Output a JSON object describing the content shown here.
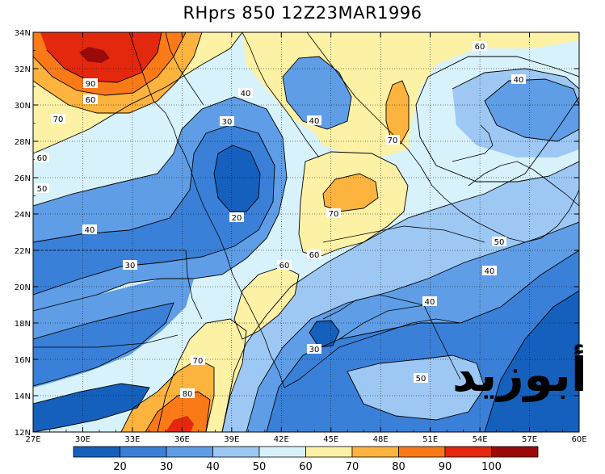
{
  "title": "RHprs 850 12Z23MAR1996",
  "watermark": "أبوزيد",
  "map": {
    "lat_labels": [
      "34N",
      "32N",
      "30N",
      "28N",
      "26N",
      "24N",
      "22N",
      "20N",
      "18N",
      "16N",
      "14N",
      "12N"
    ],
    "lon_labels": [
      "27E",
      "30E",
      "33E",
      "36E",
      "39E",
      "42E",
      "45E",
      "48E",
      "51E",
      "54E",
      "57E",
      "60E"
    ],
    "contour_labels": [
      {
        "text": "60"
      },
      {
        "text": "40"
      },
      {
        "text": "90"
      },
      {
        "text": "60"
      },
      {
        "text": "70"
      },
      {
        "text": "40"
      },
      {
        "text": "30"
      },
      {
        "text": "40"
      },
      {
        "text": "70"
      },
      {
        "text": "60"
      },
      {
        "text": "50"
      },
      {
        "text": "20"
      },
      {
        "text": "70"
      },
      {
        "text": "40"
      },
      {
        "text": "30"
      },
      {
        "text": "60"
      },
      {
        "text": "60"
      },
      {
        "text": "50"
      },
      {
        "text": "40"
      },
      {
        "text": "40"
      },
      {
        "text": "30"
      },
      {
        "text": "70"
      },
      {
        "text": "80"
      },
      {
        "text": "50"
      }
    ]
  },
  "colorbar": {
    "labels": [
      "20",
      "30",
      "40",
      "50",
      "60",
      "70",
      "80",
      "90",
      "100"
    ],
    "colors": [
      "#1560bd",
      "#3a80d8",
      "#5f9ee6",
      "#9ec8f4",
      "#d8f2fb",
      "#fdf1a6",
      "#fdb43f",
      "#fb7a18",
      "#e3280e",
      "#9a0a0a"
    ]
  }
}
